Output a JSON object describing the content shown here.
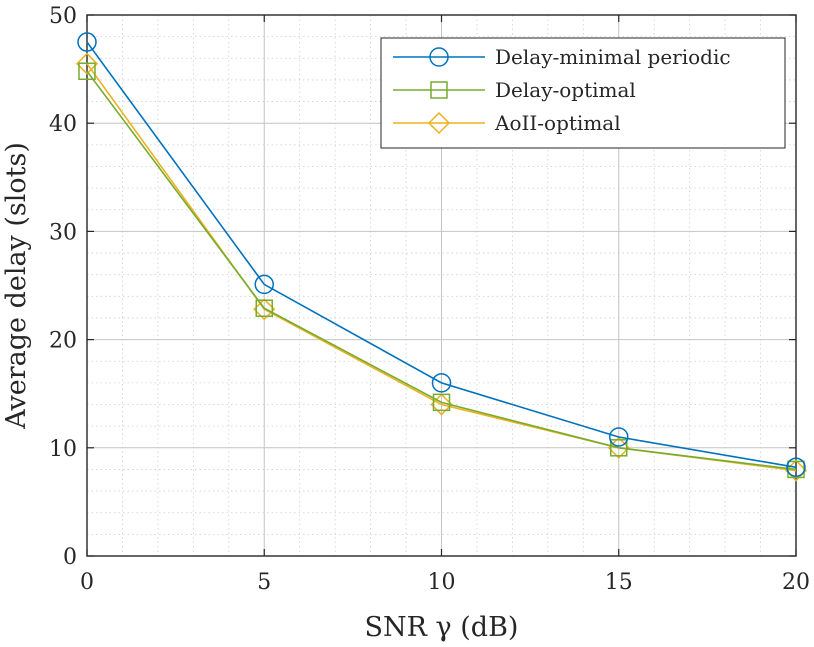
{
  "chart_data": {
    "type": "line",
    "title": "",
    "xlabel": "SNR γ (dB)",
    "ylabel": "Average delay (slots)",
    "x": [
      0,
      5,
      10,
      15,
      20
    ],
    "xlim": [
      0,
      20
    ],
    "ylim": [
      0,
      50
    ],
    "xticks": [
      0,
      5,
      10,
      15,
      20
    ],
    "yticks": [
      0,
      10,
      20,
      30,
      40,
      50
    ],
    "xtick_labels": [
      "0",
      "5",
      "10",
      "15",
      "20"
    ],
    "ytick_labels": [
      "0",
      "10",
      "20",
      "30",
      "40",
      "50"
    ],
    "grid": true,
    "minor_grid": true,
    "legend_position": "top-right",
    "series": [
      {
        "name": "Delay-minimal periodic",
        "values": [
          47.5,
          25.1,
          16.0,
          11.0,
          8.2
        ],
        "color": "#0072BD",
        "marker": "circle"
      },
      {
        "name": "Delay-optimal",
        "values": [
          44.8,
          22.9,
          14.2,
          10.0,
          8.0
        ],
        "color": "#77AC30",
        "marker": "square"
      },
      {
        "name": "AoII-optimal",
        "values": [
          45.5,
          22.8,
          14.0,
          10.0,
          7.9
        ],
        "color": "#EDB120",
        "marker": "diamond"
      }
    ]
  }
}
